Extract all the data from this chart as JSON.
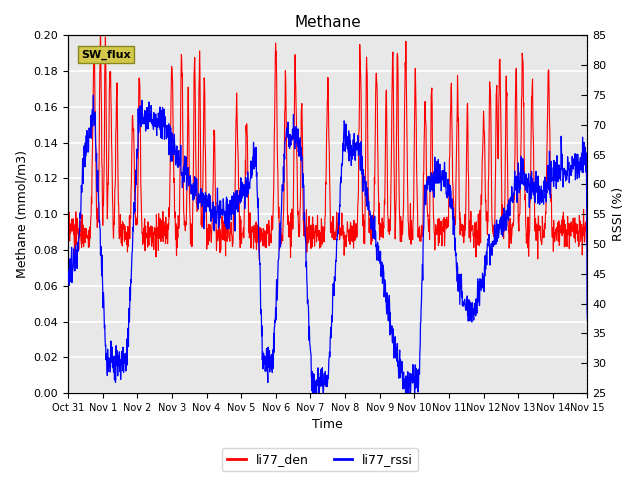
{
  "title": "Methane",
  "xlabel": "Time",
  "ylabel_left": "Methane (mmol/m3)",
  "ylabel_right": "RSSI (%)",
  "ylim_left": [
    0.0,
    0.2
  ],
  "ylim_right": [
    25,
    85
  ],
  "yticks_left": [
    0.0,
    0.02,
    0.04,
    0.06,
    0.08,
    0.1,
    0.12,
    0.14,
    0.16,
    0.18,
    0.2
  ],
  "yticks_right": [
    25,
    30,
    35,
    40,
    45,
    50,
    55,
    60,
    65,
    70,
    75,
    80,
    85
  ],
  "xtick_labels": [
    "Oct 31",
    "Nov 1",
    "Nov 2",
    "Nov 3",
    "Nov 4",
    "Nov 5",
    "Nov 6",
    "Nov 7",
    "Nov 8",
    "Nov 9",
    "Nov 10",
    "Nov 11",
    "Nov 12",
    "Nov 13",
    "Nov 14",
    "Nov 15"
  ],
  "legend_entries": [
    "li77_den",
    "li77_rssi"
  ],
  "legend_colors": [
    "red",
    "blue"
  ],
  "sw_flux_box_color": "#d4c84a",
  "line_color_den": "red",
  "line_color_rssi": "blue",
  "background_color": "#e8e8e8",
  "grid_color": "white",
  "title_fontsize": 11,
  "axis_fontsize": 9,
  "tick_fontsize": 8,
  "figsize": [
    6.4,
    4.8
  ],
  "dpi": 100
}
